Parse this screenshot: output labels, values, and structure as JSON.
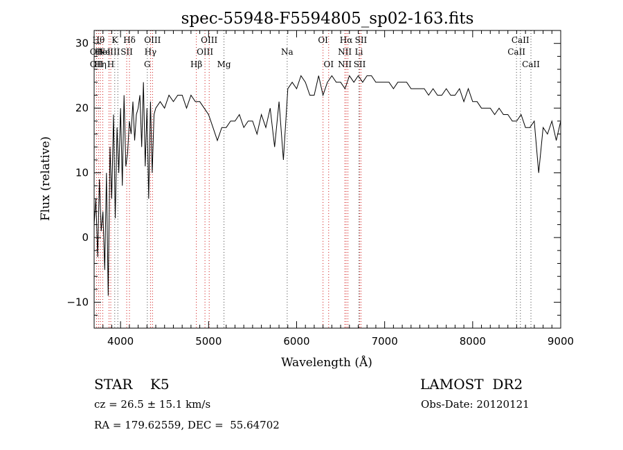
{
  "chart_data": {
    "type": "line",
    "title": "spec-55948-F5594805_sp02-163.fits",
    "xlabel": "Wavelength (Å)",
    "ylabel": "Flux (relative)",
    "xlim": [
      3700,
      9000
    ],
    "ylim": [
      -14,
      32
    ],
    "xticks": [
      "4000",
      "5000",
      "6000",
      "7000",
      "8000",
      "9000"
    ],
    "yticks": [
      "−10",
      "0",
      "10",
      "20",
      "30"
    ],
    "grid": false,
    "series": [
      {
        "x": [
          3700,
          3720,
          3740,
          3760,
          3780,
          3800,
          3820,
          3840,
          3860,
          3880,
          3900,
          3920,
          3940,
          3960,
          3980,
          4000,
          4020,
          4040,
          4060,
          4080,
          4100,
          4120,
          4140,
          4160,
          4180,
          4200,
          4220,
          4240,
          4260,
          4280,
          4300,
          4320,
          4340,
          4360,
          4380,
          4400,
          4450,
          4500,
          4550,
          4600,
          4650,
          4700,
          4750,
          4800,
          4850,
          4900,
          4950,
          5000,
          5050,
          5100,
          5150,
          5200,
          5250,
          5300,
          5350,
          5400,
          5450,
          5500,
          5550,
          5600,
          5650,
          5700,
          5750,
          5800,
          5850,
          5900,
          5950,
          6000,
          6050,
          6100,
          6150,
          6200,
          6250,
          6300,
          6350,
          6400,
          6450,
          6500,
          6550,
          6600,
          6650,
          6700,
          6750,
          6800,
          6850,
          6900,
          6950,
          7000,
          7050,
          7100,
          7150,
          7200,
          7250,
          7300,
          7350,
          7400,
          7450,
          7500,
          7550,
          7600,
          7650,
          7700,
          7750,
          7800,
          7850,
          7900,
          7950,
          8000,
          8050,
          8100,
          8150,
          8200,
          8250,
          8300,
          8350,
          8400,
          8450,
          8500,
          8550,
          8600,
          8650,
          8700,
          8750,
          8800,
          8850,
          8900,
          8950,
          9000
        ],
        "y": [
          2,
          6,
          -3,
          9,
          1,
          4,
          -5,
          10,
          -9,
          14,
          6,
          19,
          3,
          17,
          10,
          20,
          8,
          22,
          11,
          13,
          18,
          16,
          21,
          15,
          19,
          20,
          22,
          14,
          24,
          11,
          20,
          6,
          21,
          10,
          19,
          20,
          21,
          20,
          22,
          21,
          22,
          22,
          20,
          22,
          21,
          21,
          20,
          19,
          17,
          15,
          17,
          17,
          18,
          18,
          19,
          17,
          18,
          18,
          16,
          19,
          17,
          20,
          14,
          21,
          12,
          23,
          24,
          23,
          25,
          24,
          22,
          22,
          25,
          22,
          24,
          25,
          24,
          24,
          23,
          25,
          24,
          25,
          24,
          25,
          25,
          24,
          24,
          24,
          24,
          23,
          24,
          24,
          24,
          23,
          23,
          23,
          23,
          22,
          23,
          22,
          22,
          23,
          22,
          22,
          23,
          21,
          23,
          21,
          21,
          20,
          20,
          20,
          19,
          20,
          19,
          19,
          18,
          18,
          19,
          17,
          17,
          18,
          10,
          17,
          16,
          18,
          15,
          18
        ]
      }
    ],
    "lines_red": [
      {
        "wl": 3727,
        "row1": "",
        "row2": "OII",
        "row3": "OII"
      },
      {
        "wl": 3750,
        "row1": "Hθ",
        "row2": "",
        "row3": ""
      },
      {
        "wl": 3771,
        "row1": "",
        "row2": "",
        "row3": "Hη"
      },
      {
        "wl": 3798,
        "row1": "",
        "row2": "HeI",
        "row3": ""
      },
      {
        "wl": 3869,
        "row1": "",
        "row2": "NeIII",
        "row3": ""
      },
      {
        "wl": 3889,
        "row1": "",
        "row2": "",
        "row3": "H"
      },
      {
        "wl": 4070,
        "row1": "",
        "row2": "SII",
        "row3": ""
      },
      {
        "wl": 4101,
        "row1": "Hδ",
        "row2": "",
        "row3": ""
      },
      {
        "wl": 4340,
        "row1": "",
        "row2": "Hγ",
        "row3": ""
      },
      {
        "wl": 4363,
        "row1": "OIII",
        "row2": "",
        "row3": ""
      },
      {
        "wl": 4861,
        "row1": "",
        "row2": "",
        "row3": "Hβ"
      },
      {
        "wl": 4959,
        "row1": "",
        "row2": "OIII",
        "row3": ""
      },
      {
        "wl": 5007,
        "row1": "OIII",
        "row2": "",
        "row3": ""
      },
      {
        "wl": 6300,
        "row1": "OI",
        "row2": "",
        "row3": ""
      },
      {
        "wl": 6364,
        "row1": "",
        "row2": "",
        "row3": "OI"
      },
      {
        "wl": 6548,
        "row1": "",
        "row2": "NII",
        "row3": "NII"
      },
      {
        "wl": 6563,
        "row1": "Hα",
        "row2": "",
        "row3": ""
      },
      {
        "wl": 6583,
        "row1": "",
        "row2": "",
        "row3": ""
      },
      {
        "wl": 6716,
        "row1": "",
        "row2": "",
        "row3": "SII"
      },
      {
        "wl": 6731,
        "row1": "SII",
        "row2": "",
        "row3": ""
      }
    ],
    "lines_gray": [
      {
        "wl": 3934,
        "row1": "K",
        "row2": "",
        "row3": ""
      },
      {
        "wl": 3969,
        "row1": "",
        "row2": "",
        "row3": ""
      },
      {
        "wl": 4304,
        "row1": "",
        "row2": "",
        "row3": "G"
      },
      {
        "wl": 5175,
        "row1": "",
        "row2": "",
        "row3": "Mg"
      },
      {
        "wl": 5893,
        "row1": "",
        "row2": "Na",
        "row3": ""
      },
      {
        "wl": 6708,
        "row1": "",
        "row2": "Li",
        "row3": ""
      },
      {
        "wl": 8498,
        "row1": "",
        "row2": "CaII",
        "row3": ""
      },
      {
        "wl": 8542,
        "row1": "CaII",
        "row2": "",
        "row3": ""
      },
      {
        "wl": 8662,
        "row1": "",
        "row2": "",
        "row3": "CaII"
      }
    ]
  },
  "info": {
    "object": "STAR    K5",
    "survey": "LAMOST  DR2",
    "velocity": "cz = 26.5 ± 15.1 km/s",
    "obsdate": "Obs-Date: 20120121",
    "coords": "RA = 179.62559, DEC =  55.64702"
  }
}
